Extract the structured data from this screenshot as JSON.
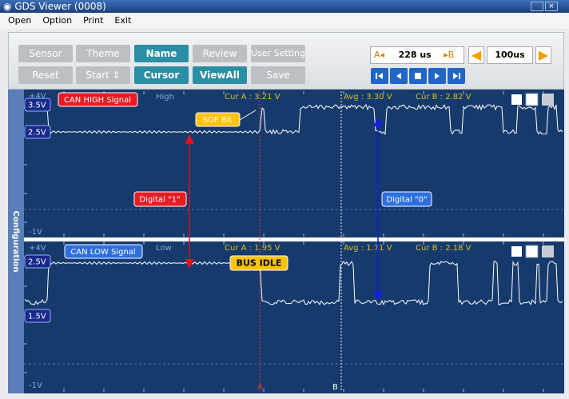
{
  "window": {
    "title": "GDS Viewer (0008)"
  },
  "menu": [
    "Open",
    "Option",
    "Print",
    "Exit"
  ],
  "toolbar": {
    "row1": [
      "Sensor",
      "Theme",
      "Name",
      "Review",
      "User Setting"
    ],
    "row2": [
      "Reset",
      "Start",
      "Cursor",
      "ViewAll",
      "Save"
    ],
    "cursor_a": "A",
    "cursor_delta": "228 us",
    "cursor_b": "B",
    "time_div": "100us"
  },
  "sidebar": "Configuration",
  "panels": [
    {
      "signal": "CAN HIGH Signal",
      "level": "High",
      "top": "+4V",
      "marks": [
        "3.5V",
        "2.5V"
      ],
      "bottom": "-1V",
      "cur_a": "Cur A : 3.21 V",
      "avg": "Avg : 3.30 V",
      "cur_b": "Cur B : 2.82 V"
    },
    {
      "signal": "CAN LOW Signal",
      "level": "Low",
      "top": "+4V",
      "marks": [
        "2.5V",
        "1.5V"
      ],
      "bottom": "-1V",
      "cur_a": "Cur A : 1.95 V",
      "avg": "Avg : 1.71 V",
      "cur_b": "Cur B : 2.18 V"
    }
  ],
  "annotations": {
    "sof": "SOF Bit",
    "digital_1": "Digital \"1\"",
    "digital_0": "Digital \"0\"",
    "bus_idle": "BUS IDLE"
  },
  "cursors": [
    "A",
    "B"
  ]
}
